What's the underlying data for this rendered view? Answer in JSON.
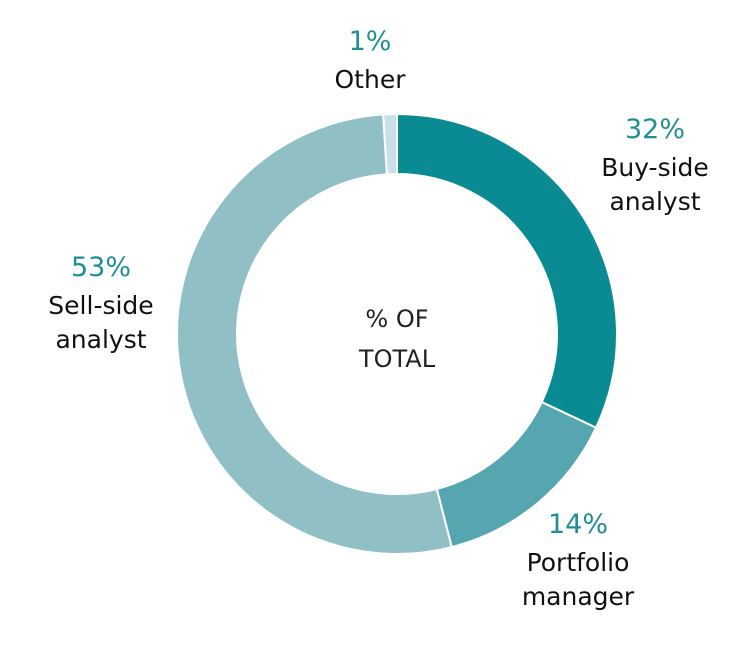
{
  "chart_data": {
    "type": "pie",
    "variant": "donut",
    "center_label": [
      "% OF",
      "TOTAL"
    ],
    "slices": [
      {
        "label": [
          "Buy-side",
          "analyst"
        ],
        "value": 32,
        "display": "32%",
        "color": "#0a8b93"
      },
      {
        "label": [
          "Portfolio",
          "manager"
        ],
        "value": 14,
        "display": "14%",
        "color": "#55a6b0"
      },
      {
        "label": [
          "Sell-side",
          "analyst"
        ],
        "value": 53,
        "display": "53%",
        "color": "#91bfc6"
      },
      {
        "label": [
          "Other"
        ],
        "value": 1,
        "display": "1%",
        "color": "#c9e1e6"
      }
    ],
    "legend": "none",
    "start": "top",
    "direction": "clockwise"
  }
}
